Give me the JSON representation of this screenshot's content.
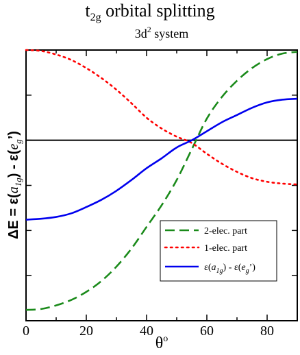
{
  "chart_data": {
    "type": "line",
    "title": {
      "main": "t",
      "main_sub": "2g",
      "main_rest": " orbital splitting",
      "subtitle": "3d",
      "subtitle_sup": "2",
      "subtitle_rest": " system"
    },
    "xlabel": {
      "text": "θ",
      "sup": "o"
    },
    "ylabel": {
      "prefix": "ΔE = ε(",
      "a_italic": "a",
      "a_sub": "1g",
      "middle": ") - ε(",
      "e_italic": "e",
      "e_sub": "g",
      "suffix": "’)"
    },
    "xlim": [
      0,
      90
    ],
    "ylim": [
      -1.0,
      0.5
    ],
    "xticks": [
      "0",
      "20",
      "40",
      "60",
      "80"
    ],
    "xtick_values": [
      0,
      20,
      40,
      60,
      80
    ],
    "ytick_values": [
      -0.75,
      -0.5,
      -0.25,
      0,
      0.25
    ],
    "zero_line": true,
    "grid": false,
    "legend_position": "bottom-right",
    "series": [
      {
        "name": "2-elec. part",
        "color": "#1a8a1a",
        "style": "dashed",
        "x": [
          0,
          5,
          10,
          15,
          20,
          25,
          30,
          35,
          40,
          45,
          50,
          55,
          60,
          65,
          70,
          75,
          80,
          85,
          90
        ],
        "y": [
          -0.94,
          -0.935,
          -0.915,
          -0.885,
          -0.84,
          -0.78,
          -0.7,
          -0.6,
          -0.48,
          -0.36,
          -0.22,
          -0.05,
          0.12,
          0.24,
          0.33,
          0.4,
          0.45,
          0.48,
          0.49
        ]
      },
      {
        "name": "1-elec. part",
        "color": "#ff0000",
        "style": "dotted",
        "x": [
          0,
          5,
          10,
          15,
          20,
          25,
          30,
          35,
          40,
          45,
          50,
          55,
          60,
          65,
          70,
          75,
          80,
          85,
          90
        ],
        "y": [
          0.5,
          0.495,
          0.475,
          0.445,
          0.4,
          0.345,
          0.28,
          0.205,
          0.125,
          0.065,
          0.02,
          -0.015,
          -0.075,
          -0.13,
          -0.175,
          -0.21,
          -0.23,
          -0.24,
          -0.245
        ]
      },
      {
        "name": "ε(a1g) - ε(eg’)",
        "legend_parts": {
          "p1": "ε(",
          "a": "a",
          "a_sub": "1g",
          "p2": ") - ε(",
          "e": "e",
          "e_sub": "g",
          "p3": "’)"
        },
        "color": "#0000ee",
        "style": "solid",
        "x": [
          0,
          5,
          10,
          15,
          20,
          25,
          30,
          35,
          40,
          45,
          50,
          55,
          60,
          65,
          70,
          75,
          80,
          85,
          90
        ],
        "y": [
          -0.44,
          -0.435,
          -0.425,
          -0.405,
          -0.37,
          -0.33,
          -0.28,
          -0.22,
          -0.155,
          -0.1,
          -0.04,
          0.0,
          0.05,
          0.1,
          0.14,
          0.18,
          0.21,
          0.225,
          0.23
        ]
      }
    ]
  }
}
